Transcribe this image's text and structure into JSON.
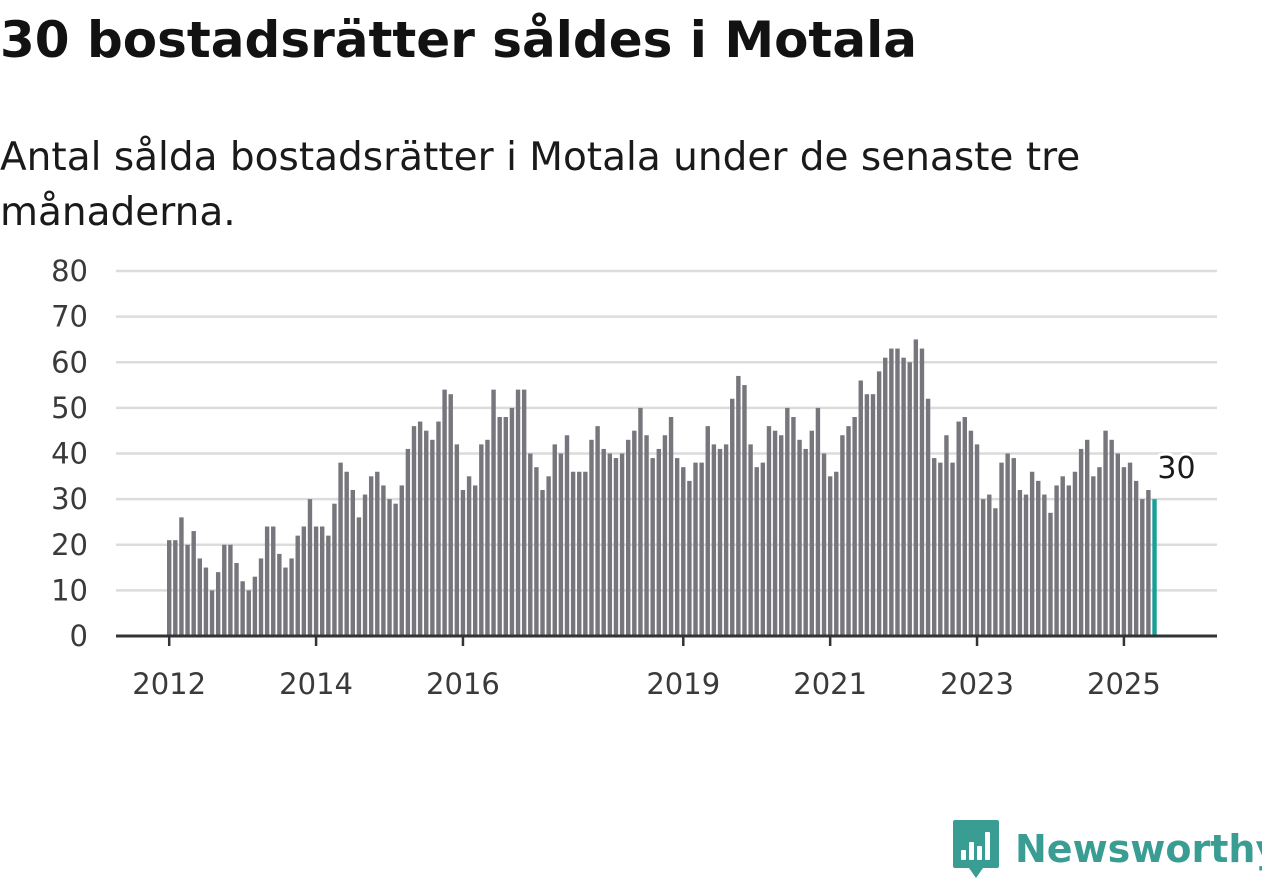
{
  "title": "30 bostadsrätter såldes i Motala",
  "subtitle": "Antal sålda bostadsrätter i Motala under de senaste tre månaderna.",
  "brand": {
    "name": "Newsworthy",
    "color": "#3a9d94",
    "icon": "bar-chart-icon"
  },
  "colors": {
    "bar": "#76767c",
    "highlight": "#1a9f98",
    "grid": "#dcdcdc",
    "axis": "#333333"
  },
  "chart_data": {
    "type": "bar",
    "title": "30 bostadsrätter såldes i Motala",
    "subtitle": "Antal sålda bostadsrätter i Motala under de senaste tre månaderna.",
    "xlabel": "",
    "ylabel": "",
    "ylim": [
      0,
      80
    ],
    "yticks": [
      0,
      10,
      20,
      30,
      40,
      50,
      60,
      70,
      80
    ],
    "grid": true,
    "legend": "none",
    "x_start": "2012-01",
    "x_end": "2025-06",
    "xtick_labels": [
      "2012",
      "2014",
      "2016",
      "2019",
      "2021",
      "2023",
      "2025"
    ],
    "values": [
      21,
      21,
      26,
      20,
      23,
      17,
      15,
      10,
      14,
      20,
      20,
      16,
      12,
      10,
      13,
      17,
      24,
      24,
      18,
      15,
      17,
      22,
      24,
      30,
      24,
      24,
      22,
      29,
      38,
      36,
      32,
      26,
      31,
      35,
      36,
      33,
      30,
      29,
      33,
      41,
      46,
      47,
      45,
      43,
      47,
      54,
      53,
      42,
      32,
      35,
      33,
      42,
      43,
      54,
      48,
      48,
      50,
      54,
      54,
      40,
      37,
      32,
      35,
      42,
      40,
      44,
      36,
      36,
      36,
      43,
      46,
      41,
      40,
      39,
      40,
      43,
      45,
      50,
      44,
      39,
      41,
      44,
      48,
      39,
      37,
      34,
      38,
      38,
      46,
      42,
      41,
      42,
      52,
      57,
      55,
      42,
      37,
      38,
      46,
      45,
      44,
      50,
      48,
      43,
      41,
      45,
      50,
      40,
      35,
      36,
      44,
      46,
      48,
      56,
      53,
      53,
      58,
      61,
      63,
      63,
      61,
      60,
      65,
      63,
      52,
      39,
      38,
      44,
      38,
      47,
      48,
      45,
      42,
      30,
      31,
      28,
      38,
      40,
      39,
      32,
      31,
      36,
      34,
      31,
      27,
      33,
      35,
      33,
      36,
      41,
      43,
      35,
      37,
      45,
      43,
      40,
      37,
      38,
      34,
      30,
      32,
      30
    ],
    "highlight": {
      "index": 161,
      "label": "30"
    }
  }
}
